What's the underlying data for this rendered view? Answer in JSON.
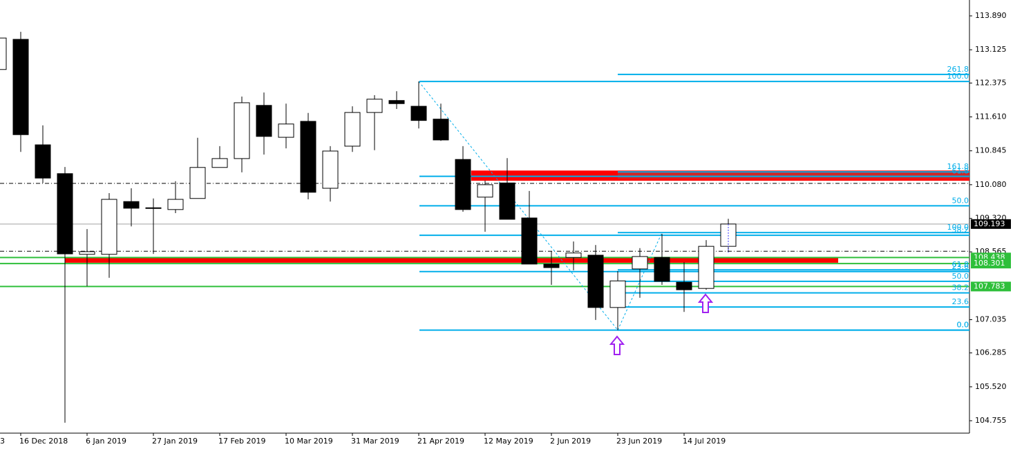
{
  "chart_data": {
    "type": "candlestick",
    "cut_label": "3",
    "categories": [
      null,
      "16 Dec 2018",
      null,
      null,
      "6 Jan 2019",
      null,
      null,
      "27 Jan 2019",
      null,
      null,
      "17 Feb 2019",
      null,
      null,
      "10 Mar 2019",
      null,
      null,
      "31 Mar 2019",
      null,
      null,
      "21 Apr 2019",
      null,
      null,
      "12 May 2019",
      null,
      null,
      "2 Jun 2019",
      null,
      null,
      "23 Jun 2019",
      null,
      null,
      "14 Jul 2019",
      null,
      null
    ],
    "open": [
      112.68,
      113.36,
      110.98,
      110.33,
      108.51,
      108.51,
      109.7,
      109.56,
      109.52,
      109.77,
      110.47,
      110.67,
      111.87,
      111.15,
      111.51,
      110.0,
      110.95,
      111.71,
      111.98,
      111.85,
      111.56,
      110.65,
      109.8,
      110.12,
      109.33,
      108.29,
      108.44,
      108.49,
      107.31,
      108.18,
      108.44,
      107.88,
      107.74,
      108.69
    ],
    "high": [
      113.39,
      113.53,
      111.42,
      110.48,
      109.08,
      109.89,
      110.0,
      109.77,
      110.16,
      111.14,
      110.95,
      112.07,
      112.16,
      111.91,
      111.7,
      110.95,
      111.85,
      112.1,
      112.19,
      112.41,
      111.91,
      110.95,
      110.17,
      110.68,
      109.94,
      108.58,
      108.8,
      108.72,
      108.13,
      108.65,
      108.97,
      108.33,
      108.83,
      109.31
    ],
    "low": [
      112.68,
      110.82,
      110.12,
      104.71,
      107.79,
      107.98,
      109.14,
      108.52,
      109.44,
      109.77,
      110.47,
      110.36,
      110.76,
      110.9,
      109.75,
      109.7,
      110.82,
      110.86,
      111.79,
      111.35,
      111.07,
      109.47,
      109.02,
      109.3,
      108.29,
      107.82,
      108.15,
      107.03,
      106.8,
      107.53,
      107.82,
      107.21,
      107.71,
      108.55
    ],
    "close": [
      113.39,
      111.21,
      110.23,
      108.52,
      108.57,
      109.75,
      109.55,
      109.55,
      109.75,
      110.47,
      110.67,
      111.93,
      111.17,
      111.45,
      109.91,
      110.84,
      111.71,
      112.01,
      111.91,
      111.53,
      111.09,
      109.52,
      110.08,
      109.3,
      108.29,
      108.21,
      108.54,
      107.31,
      107.91,
      108.46,
      107.9,
      107.71,
      108.69,
      109.193
    ],
    "up_color": "#ffffff",
    "down_color": "#000000",
    "ylim": [
      104.475,
      114.248
    ],
    "yticks": [
      {
        "value": 113.89,
        "label": "113.890"
      },
      113.125,
      112.375,
      {
        "value": 111.61,
        "label": "111.610"
      },
      110.845,
      {
        "value": 110.08,
        "label": "110.080"
      },
      {
        "value": 109.32,
        "label": "109.320"
      },
      108.565,
      107.035,
      106.285,
      {
        "value": 105.52,
        "label": "105.520"
      },
      104.755
    ],
    "fib_color": "#00aeea",
    "fib_sets": [
      {
        "levels": [
          {
            "label": "100.0",
            "price": 112.41
          },
          {
            "label": "61.8",
            "price": 110.27
          },
          {
            "label": "50.0",
            "price": 109.605
          },
          {
            "label": "38.2",
            "price": 108.94
          },
          {
            "label": "23.6",
            "price": 108.12
          },
          {
            "label": "0.0",
            "price": 106.8
          }
        ]
      },
      {
        "levels": [
          {
            "label": "261.8",
            "price": 112.57
          },
          {
            "label": "161.8",
            "price": 110.37
          },
          {
            "label": "100.0",
            "price": 109.0
          },
          {
            "label": "61.8",
            "price": 108.16
          },
          {
            "label": "50.0",
            "price": 107.9
          },
          {
            "label": "38.2",
            "price": 107.64
          },
          {
            "label": "23.6",
            "price": 107.32
          },
          {
            "label": "0.0",
            "price": 106.8
          }
        ]
      }
    ],
    "zones": [
      {
        "top": 110.4,
        "bottom": 110.17,
        "color": "#ff0000"
      },
      {
        "top": 108.44,
        "bottom": 108.32,
        "color": "#ff0000"
      }
    ],
    "dash_levels": [
      110.11,
      108.58
    ],
    "price_labels": [
      {
        "value": 109.193,
        "color": "#000000",
        "line": "#a0a0a0"
      },
      {
        "value": 108.438,
        "color": "#2ebf3a",
        "line": "#2ebf3a"
      },
      {
        "value": 108.301,
        "color": "#2ebf3a",
        "line": "#2ebf3a"
      },
      {
        "value": 107.783,
        "color": "#2ebf3a",
        "line": "#2ebf3a"
      }
    ]
  }
}
